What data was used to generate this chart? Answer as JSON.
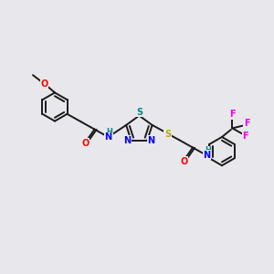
{
  "bg_color": "#e8e8ec",
  "bond_color": "#1a1a1a",
  "bond_width": 1.4,
  "atom_colors": {
    "O": "#ff0000",
    "N": "#0000ee",
    "S_thiad": "#008888",
    "S_chain": "#bbaa00",
    "H": "#008888",
    "F": "#ee00ee",
    "C": "#1a1a1a"
  },
  "font_size": 7.0,
  "font_size_H": 6.0
}
